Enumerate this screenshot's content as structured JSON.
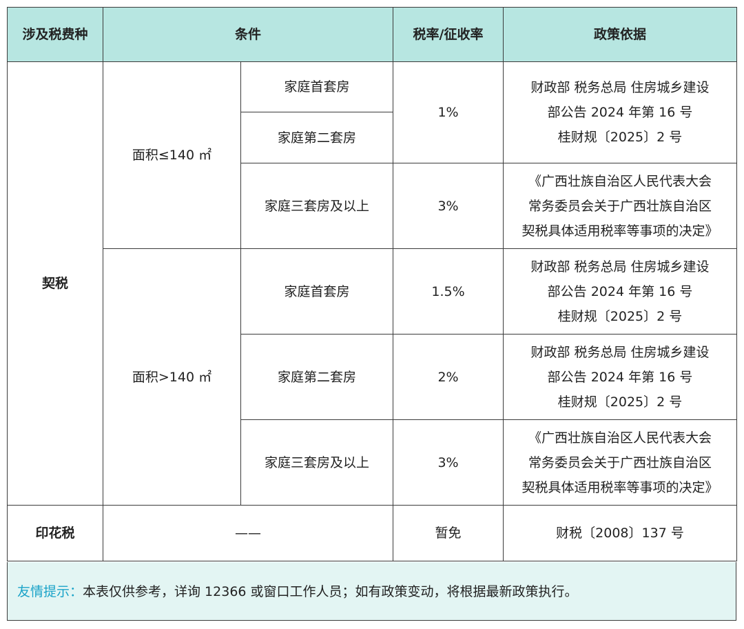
{
  "headers": {
    "tax_type": "涉及税费种",
    "condition": "条件",
    "rate": "税率/征收率",
    "basis": "政策依据"
  },
  "deed_tax": {
    "name": "契税",
    "groups": [
      {
        "area": "面积≤140 ㎡",
        "rows": [
          {
            "type": "家庭首套房"
          },
          {
            "type": "家庭第二套房"
          },
          {
            "type": "家庭三套房及以上"
          }
        ],
        "rate_first_two": "1%",
        "rate_third": "3%",
        "basis_first_two": [
          "财政部 税务总局 住房城乡建设",
          "部公告 2024 年第 16 号",
          "桂财规〔2025〕2 号"
        ],
        "basis_third": [
          "《广西壮族自治区人民代表大会",
          "常务委员会关于广西壮族自治区",
          "契税具体适用税率等事项的决定》"
        ]
      },
      {
        "area": "面积>140 ㎡",
        "rows": [
          {
            "type": "家庭首套房",
            "rate": "1.5%",
            "basis": [
              "财政部 税务总局 住房城乡建设",
              "部公告 2024 年第 16 号",
              "桂财规〔2025〕2 号"
            ]
          },
          {
            "type": "家庭第二套房",
            "rate": "2%",
            "basis": [
              "财政部 税务总局 住房城乡建设",
              "部公告 2024 年第 16 号",
              "桂财规〔2025〕2 号"
            ]
          },
          {
            "type": "家庭三套房及以上",
            "rate": "3%",
            "basis": [
              "《广西壮族自治区人民代表大会",
              "常务委员会关于广西壮族自治区",
              "契税具体适用税率等事项的决定》"
            ]
          }
        ]
      }
    ]
  },
  "stamp_tax": {
    "name": "印花税",
    "condition": "——",
    "rate": "暂免",
    "basis": "财税〔2008〕137 号"
  },
  "notice": {
    "label": "友情提示：",
    "text": "本表仅供参考，详询 12366 或窗口工作人员；如有政策变动，将根据最新政策执行。"
  },
  "colors": {
    "header_bg": "#b7e6e1",
    "notice_bg": "#e3f5f3",
    "notice_label": "#1aa3c8"
  }
}
